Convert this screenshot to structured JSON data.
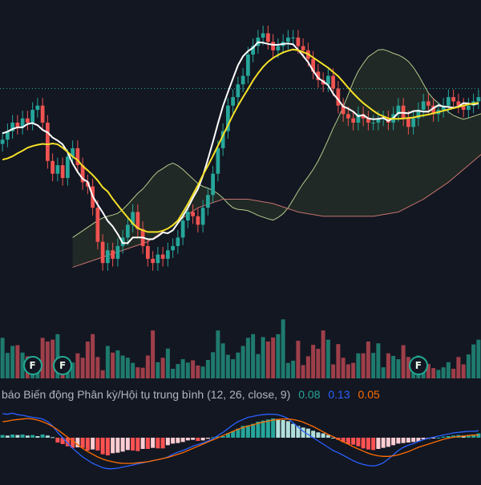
{
  "colors": {
    "background": "#131722",
    "up": "#26a69a",
    "down": "#ef5350",
    "volume_up": "#1f7a6e",
    "volume_down": "#9e3f4a",
    "conversion_line": "#ffffff",
    "base_line": "#f5e027",
    "span_a": "#b5c98b",
    "span_b": "#c4726e",
    "macd_line": "#2962ff",
    "signal_line": "#ff6d00",
    "hist_pos_strong": "#26a69a",
    "hist_pos_weak": "#b2dfdb",
    "hist_neg_strong": "#ff5252",
    "hist_neg_weak": "#ffcdd2",
    "price_line": "#26a69a"
  },
  "macd_indicator": {
    "name": "báo Biến động Phân kỳ/Hội tụ trung bình (12, 26, close, 9)",
    "histogram_value": "0.08",
    "macd_value": "0.13",
    "signal_value": "0.05"
  },
  "badges": [
    {
      "label": "F",
      "bar": 6
    },
    {
      "label": "F",
      "bar": 12
    },
    {
      "label": "F",
      "bar": 83
    }
  ],
  "chart_data": [
    {
      "type": "candlestick",
      "indicator": "Ichimoku Cloud",
      "bars": 96,
      "shift": 14,
      "ylim": [
        65,
        130
      ],
      "price_line": 112,
      "closes": [
        100,
        102,
        104,
        103,
        105,
        104,
        107,
        108,
        104,
        95,
        92,
        94,
        91,
        96,
        98,
        94,
        90,
        89,
        84,
        76,
        71,
        74,
        72,
        75,
        77,
        80,
        83,
        79,
        75,
        72,
        71,
        73,
        72,
        74,
        75,
        77,
        81,
        83,
        82,
        80,
        84,
        87,
        92,
        98,
        102,
        108,
        110,
        113,
        115,
        120,
        122,
        124,
        125,
        123,
        121,
        122,
        123,
        124,
        124,
        122,
        121,
        119,
        116,
        114,
        113,
        115,
        112,
        108,
        106,
        105,
        104,
        106,
        105,
        104,
        104,
        105,
        105,
        104,
        106,
        108,
        105,
        103,
        105,
        107,
        109,
        108,
        106,
        107,
        108,
        110,
        109,
        108,
        107,
        108,
        109,
        110
      ],
      "conversion_line": [
        101.5,
        101.9,
        102.5,
        102.9,
        102.9,
        103.7,
        103.9,
        103.4,
        102.3,
        101.7,
        100.5,
        99.8,
        98.9,
        97.0,
        94.4,
        92.4,
        90.8,
        90.1,
        86.7,
        84.7,
        82.9,
        80.9,
        79.6,
        77.8,
        75.7,
        75.7,
        77.0,
        77.0,
        77.0,
        76.6,
        76.6,
        77.3,
        78.2,
        78.0,
        78.7,
        80.4,
        82.0,
        84.0,
        86.3,
        88.4,
        91.5,
        95.4,
        99.5,
        103.8,
        107.9,
        111.2,
        114.4,
        117.5,
        119.6,
        120.8,
        121.6,
        122.9,
        122.8,
        122.5,
        122.3,
        122.3,
        122.5,
        122.6,
        122.4,
        121.1,
        119.7,
        118.2,
        116.2,
        114.5,
        113.7,
        112.8,
        110.8,
        109.4,
        107.8,
        107.3,
        106.6,
        105.5,
        105.8,
        105.0,
        104.8,
        104.9,
        105.1,
        104.4,
        105.1,
        106.3,
        106.3,
        106.2,
        106.7,
        106.8,
        106.6,
        106.6,
        107.4,
        108.1,
        107.8,
        107.7,
        107.5,
        107.8,
        108.6,
        108.5,
        108.3,
        108.5
      ],
      "base_line": [
        95.3,
        95.6,
        96.1,
        96.8,
        97.4,
        98.1,
        98.5,
        98.8,
        99.0,
        98.9,
        99.1,
        98.9,
        98.1,
        97.1,
        96.0,
        95.2,
        93.8,
        92.8,
        91.7,
        90.4,
        88.8,
        87.8,
        86.1,
        84.6,
        83.1,
        81.7,
        80.3,
        79.2,
        78.7,
        78.3,
        78.3,
        78.3,
        78.6,
        79.1,
        79.9,
        81.0,
        82.9,
        84.9,
        87.1,
        89.3,
        91.7,
        93.9,
        96.2,
        98.6,
        101.0,
        103.4,
        105.8,
        108.0,
        110.0,
        111.9,
        113.9,
        115.6,
        117.1,
        118.3,
        119.2,
        119.9,
        120.5,
        120.9,
        121.2,
        121.0,
        120.6,
        120.1,
        119.3,
        118.5,
        117.7,
        116.9,
        115.9,
        114.9,
        113.6,
        112.2,
        110.9,
        109.7,
        108.6,
        107.7,
        106.8,
        106.0,
        105.5,
        105.0,
        104.9,
        104.9,
        105.0,
        105.1,
        105.2,
        105.5,
        105.7,
        105.9,
        106.2,
        106.5,
        106.8,
        107.1,
        107.4,
        107.7,
        108.0,
        108.3,
        108.5,
        108.7
      ],
      "span_a": [
        77.0,
        77.8,
        78.6,
        79.4,
        80.2,
        81.0,
        81.6,
        82.0,
        82.3,
        82.7,
        83.6,
        84.8,
        86.1,
        87.4,
        88.4,
        89.8,
        91.3,
        92.5,
        93.2,
        94.0,
        94.5,
        93.9,
        93.0,
        91.9,
        90.8,
        89.7,
        89.0,
        88.6,
        88.1,
        87.3,
        86.3,
        85.0,
        84.0,
        83.6,
        83.5,
        83.3,
        82.8,
        82.2,
        81.8,
        81.4,
        81.1,
        81.7,
        82.6,
        84.0,
        85.9,
        87.9,
        89.7,
        91.3,
        93.0,
        95.0,
        97.4,
        100.0,
        102.7,
        105.1,
        107.7,
        110.6,
        113.6,
        116.1,
        117.9,
        119.5,
        120.3,
        121.1,
        121.2,
        120.8,
        120.3,
        119.9,
        119.3,
        118.4,
        117.0,
        115.2,
        113.1,
        111.0,
        109.6,
        108.6,
        107.6,
        106.5,
        105.7,
        105.2,
        104.8,
        105.1,
        105.5,
        105.9,
        106.3,
        106.7,
        107.1,
        107.5,
        107.9,
        108.3,
        108.7,
        109.1,
        109.5,
        109.9,
        110.3,
        110.7,
        111.1,
        111.5
      ],
      "span_b": [
        70.0,
        70.4,
        70.8,
        71.2,
        71.6,
        72.0,
        72.4,
        72.8,
        73.2,
        73.6,
        74.0,
        74.4,
        74.8,
        75.2,
        75.6,
        76.0,
        76.8,
        77.6,
        78.4,
        79.2,
        80.0,
        80.8,
        81.6,
        82.4,
        83.2,
        84.0,
        84.4,
        84.8,
        85.2,
        85.6,
        86.0,
        86.0,
        86.0,
        86.0,
        86.0,
        86.0,
        85.8,
        85.6,
        85.4,
        85.2,
        85.0,
        84.6,
        84.2,
        83.8,
        83.4,
        83.0,
        82.8,
        82.6,
        82.4,
        82.2,
        82.0,
        82.0,
        82.0,
        82.0,
        82.0,
        82.0,
        82.0,
        82.0,
        82.0,
        82.0,
        82.0,
        82.2,
        82.4,
        82.6,
        82.8,
        83.0,
        83.6,
        84.2,
        84.8,
        85.4,
        86.0,
        86.8,
        87.6,
        88.4,
        89.2,
        90.0,
        91.0,
        92.0,
        93.0,
        94.0,
        95.0,
        96.0,
        97.0,
        98.0,
        99.0,
        100.0,
        100.8,
        101.6,
        102.4,
        103.2,
        104.0,
        104.6,
        105.2,
        105.8,
        106.4,
        107.0
      ]
    },
    {
      "type": "bar",
      "name": "volume",
      "ylim": [
        0,
        2000
      ],
      "values": [
        1100,
        690,
        880,
        900,
        700,
        600,
        360,
        500,
        1100,
        1000,
        1050,
        1200,
        340,
        480,
        430,
        680,
        560,
        1000,
        1200,
        580,
        220,
        880,
        700,
        760,
        620,
        560,
        420,
        300,
        290,
        620,
        1300,
        440,
        560,
        810,
        260,
        390,
        520,
        430,
        490,
        350,
        320,
        500,
        710,
        1300,
        950,
        640,
        520,
        700,
        880,
        1100,
        1200,
        660,
        1120,
        1000,
        1110,
        1200,
        1600,
        420,
        480,
        1020,
        360,
        600,
        910,
        800,
        1300,
        1050,
        380,
        930,
        560,
        380,
        420,
        680,
        680,
        1000,
        690,
        950,
        300,
        680,
        610,
        520,
        900,
        580,
        370,
        620,
        320,
        390,
        280,
        230,
        300,
        440,
        260,
        580,
        380,
        650,
        920,
        1050
      ]
    },
    {
      "type": "bar",
      "name": "macd",
      "ylim": [
        -0.6,
        0.6
      ],
      "histogram": [
        0.05,
        0.04,
        0.06,
        0.05,
        0.06,
        0.04,
        0.05,
        0.03,
        0.06,
        0.04,
        0.01,
        -0.09,
        -0.12,
        -0.16,
        -0.19,
        -0.18,
        -0.19,
        -0.24,
        -0.22,
        -0.24,
        -0.31,
        -0.33,
        -0.29,
        -0.28,
        -0.26,
        -0.23,
        -0.24,
        -0.25,
        -0.21,
        -0.21,
        -0.19,
        -0.2,
        -0.2,
        -0.14,
        -0.11,
        -0.1,
        -0.08,
        -0.05,
        -0.04,
        -0.06,
        -0.05,
        -0.02,
        0.01,
        0.02,
        0.03,
        0.08,
        0.12,
        0.17,
        0.22,
        0.23,
        0.26,
        0.3,
        0.32,
        0.34,
        0.36,
        0.35,
        0.33,
        0.31,
        0.26,
        0.22,
        0.19,
        0.17,
        0.13,
        0.1,
        0.08,
        0.05,
        0.0,
        -0.04,
        -0.08,
        -0.12,
        -0.13,
        -0.16,
        -0.2,
        -0.22,
        -0.23,
        -0.21,
        -0.19,
        -0.17,
        -0.14,
        -0.11,
        -0.1,
        -0.09,
        -0.08,
        -0.07,
        -0.03,
        -0.02,
        -0.01,
        0.0,
        0.02,
        0.03,
        0.04,
        0.05,
        0.04,
        0.05,
        0.06,
        0.08
      ],
      "macd_line": [
        0.45,
        0.44,
        0.46,
        0.43,
        0.42,
        0.4,
        0.38,
        0.37,
        0.35,
        0.3,
        0.22,
        0.1,
        0.0,
        -0.1,
        -0.2,
        -0.28,
        -0.36,
        -0.42,
        -0.48,
        -0.52,
        -0.56,
        -0.58,
        -0.58,
        -0.57,
        -0.55,
        -0.53,
        -0.51,
        -0.49,
        -0.47,
        -0.45,
        -0.43,
        -0.41,
        -0.39,
        -0.36,
        -0.31,
        -0.27,
        -0.24,
        -0.2,
        -0.16,
        -0.13,
        -0.1,
        -0.06,
        -0.02,
        0.04,
        0.1,
        0.17,
        0.24,
        0.3,
        0.34,
        0.38,
        0.4,
        0.42,
        0.43,
        0.44,
        0.44,
        0.43,
        0.4,
        0.36,
        0.28,
        0.2,
        0.12,
        0.06,
        0.0,
        -0.06,
        -0.12,
        -0.18,
        -0.24,
        -0.28,
        -0.33,
        -0.38,
        -0.43,
        -0.47,
        -0.5,
        -0.52,
        -0.53,
        -0.51,
        -0.47,
        -0.4,
        -0.32,
        -0.24,
        -0.18,
        -0.14,
        -0.11,
        -0.07,
        -0.04,
        -0.01,
        0.01,
        0.03,
        0.05,
        0.07,
        0.09,
        0.1,
        0.11,
        0.12,
        0.12,
        0.13
      ],
      "signal_line": [
        0.3,
        0.31,
        0.33,
        0.34,
        0.35,
        0.36,
        0.35,
        0.33,
        0.3,
        0.26,
        0.21,
        0.15,
        0.08,
        0.01,
        -0.06,
        -0.13,
        -0.2,
        -0.26,
        -0.31,
        -0.36,
        -0.4,
        -0.43,
        -0.45,
        -0.47,
        -0.48,
        -0.48,
        -0.48,
        -0.47,
        -0.46,
        -0.45,
        -0.43,
        -0.41,
        -0.39,
        -0.37,
        -0.34,
        -0.31,
        -0.28,
        -0.24,
        -0.2,
        -0.16,
        -0.12,
        -0.08,
        -0.04,
        0.0,
        0.04,
        0.08,
        0.12,
        0.16,
        0.19,
        0.22,
        0.24,
        0.27,
        0.29,
        0.31,
        0.33,
        0.34,
        0.35,
        0.35,
        0.34,
        0.32,
        0.29,
        0.25,
        0.21,
        0.16,
        0.11,
        0.06,
        0.02,
        -0.03,
        -0.08,
        -0.12,
        -0.17,
        -0.21,
        -0.25,
        -0.29,
        -0.32,
        -0.34,
        -0.35,
        -0.35,
        -0.34,
        -0.32,
        -0.29,
        -0.26,
        -0.22,
        -0.18,
        -0.15,
        -0.12,
        -0.09,
        -0.06,
        -0.03,
        -0.01,
        0.01,
        0.02,
        0.03,
        0.04,
        0.05,
        0.05
      ]
    }
  ]
}
